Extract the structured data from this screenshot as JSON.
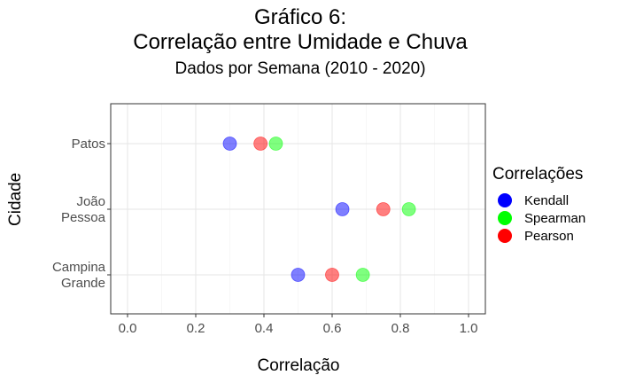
{
  "chart_data": {
    "type": "scatter",
    "title": "Gráfico 6:",
    "title2": "Correlação entre Umidade e Chuva",
    "subtitle": "Dados por Semana (2010 - 2020)",
    "xlabel": "Correlação",
    "ylabel": "Cidade",
    "xlim": [
      -0.05,
      1.05
    ],
    "x_ticks": [
      "0.0",
      "0.2",
      "0.4",
      "0.6",
      "0.8",
      "1.0"
    ],
    "x_tick_values": [
      0.0,
      0.2,
      0.4,
      0.6,
      0.8,
      1.0
    ],
    "categories": [
      "Patos",
      "João Pessoa",
      "Campina Grande"
    ],
    "category_labels": [
      [
        "Patos"
      ],
      [
        "João",
        "Pessoa"
      ],
      [
        "Campina",
        "Grande"
      ]
    ],
    "grid": true,
    "legend_position": "right",
    "legend_title": "Correlações",
    "series": [
      {
        "name": "Kendall",
        "color": "#0000ff",
        "values": [
          0.3,
          0.63,
          0.5
        ]
      },
      {
        "name": "Spearman",
        "color": "#00ff00",
        "values": [
          0.435,
          0.825,
          0.69
        ]
      },
      {
        "name": "Pearson",
        "color": "#ff0000",
        "values": [
          0.39,
          0.75,
          0.6
        ]
      }
    ]
  }
}
